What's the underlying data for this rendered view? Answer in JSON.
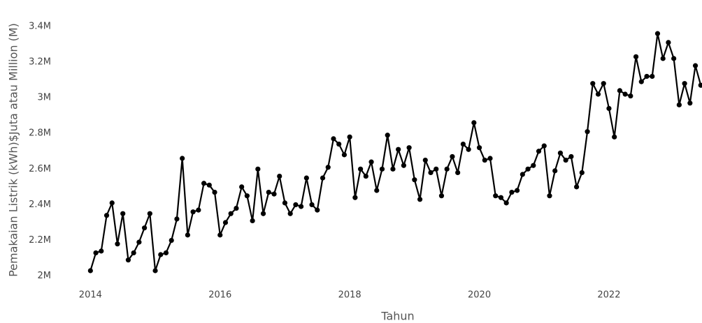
{
  "chart_data": {
    "type": "line",
    "x_label": "Tahun",
    "y_label": "Pemakaian Listrik (kWh)$Juta atau Million (M)",
    "x": [
      "2014-01",
      "2014-02",
      "2014-03",
      "2014-04",
      "2014-05",
      "2014-06",
      "2014-07",
      "2014-08",
      "2014-09",
      "2014-10",
      "2014-11",
      "2014-12",
      "2015-01",
      "2015-02",
      "2015-03",
      "2015-04",
      "2015-05",
      "2015-06",
      "2015-07",
      "2015-08",
      "2015-09",
      "2015-10",
      "2015-11",
      "2015-12",
      "2016-01",
      "2016-02",
      "2016-03",
      "2016-04",
      "2016-05",
      "2016-06",
      "2016-07",
      "2016-08",
      "2016-09",
      "2016-10",
      "2016-11",
      "2016-12",
      "2017-01",
      "2017-02",
      "2017-03",
      "2017-04",
      "2017-05",
      "2017-06",
      "2017-07",
      "2017-08",
      "2017-09",
      "2017-10",
      "2017-11",
      "2017-12",
      "2018-01",
      "2018-02",
      "2018-03",
      "2018-04",
      "2018-05",
      "2018-06",
      "2018-07",
      "2018-08",
      "2018-09",
      "2018-10",
      "2018-11",
      "2018-12",
      "2019-01",
      "2019-02",
      "2019-03",
      "2019-04",
      "2019-05",
      "2019-06",
      "2019-07",
      "2019-08",
      "2019-09",
      "2019-10",
      "2019-11",
      "2019-12",
      "2020-01",
      "2020-02",
      "2020-03",
      "2020-04",
      "2020-05",
      "2020-06",
      "2020-07",
      "2020-08",
      "2020-09",
      "2020-10",
      "2020-11",
      "2020-12",
      "2021-01",
      "2021-02",
      "2021-03",
      "2021-04",
      "2021-05",
      "2021-06",
      "2021-07",
      "2021-08",
      "2021-09",
      "2021-10",
      "2021-11",
      "2021-12",
      "2022-01",
      "2022-02",
      "2022-03",
      "2022-04",
      "2022-05",
      "2022-06",
      "2022-07",
      "2022-08",
      "2022-09",
      "2022-10",
      "2022-11",
      "2022-12",
      "2023-01",
      "2023-02",
      "2023-03",
      "2023-04",
      "2023-05",
      "2023-06"
    ],
    "series": [
      {
        "color": "#000000",
        "values": [
          2.03,
          2.13,
          2.14,
          2.34,
          2.41,
          2.18,
          2.35,
          2.09,
          2.13,
          2.19,
          2.27,
          2.35,
          2.03,
          2.12,
          2.13,
          2.2,
          2.32,
          2.66,
          2.23,
          2.36,
          2.37,
          2.52,
          2.51,
          2.47,
          2.23,
          2.3,
          2.35,
          2.38,
          2.5,
          2.45,
          2.31,
          2.6,
          2.35,
          2.47,
          2.46,
          2.56,
          2.41,
          2.35,
          2.4,
          2.39,
          2.55,
          2.4,
          2.37,
          2.55,
          2.61,
          2.77,
          2.74,
          2.68,
          2.78,
          2.44,
          2.6,
          2.56,
          2.64,
          2.48,
          2.6,
          2.79,
          2.6,
          2.71,
          2.62,
          2.72,
          2.54,
          2.43,
          2.65,
          2.58,
          2.6,
          2.45,
          2.6,
          2.67,
          2.58,
          2.74,
          2.71,
          2.86,
          2.72,
          2.65,
          2.66,
          2.45,
          2.44,
          2.41,
          2.47,
          2.48,
          2.57,
          2.6,
          2.62,
          2.7,
          2.73,
          2.45,
          2.59,
          2.69,
          2.65,
          2.67,
          2.5,
          2.58,
          2.81,
          3.08,
          3.02,
          3.08,
          2.94,
          2.78,
          3.04,
          3.02,
          3.01,
          3.23,
          3.09,
          3.12,
          3.12,
          3.36,
          3.22,
          3.31,
          3.22,
          2.96,
          3.08,
          2.97,
          3.18,
          3.07
        ]
      }
    ],
    "xlim": [
      "2013-07",
      "2023-07"
    ],
    "xticks": [
      2014,
      2016,
      2018,
      2020,
      2022
    ],
    "ylim": [
      1.94,
      3.47
    ],
    "yticks": [
      {
        "value": 2,
        "label": "2M"
      },
      {
        "value": 2.2,
        "label": "2.2M"
      },
      {
        "value": 2.4,
        "label": "2.4M"
      },
      {
        "value": 2.6,
        "label": "2.6M"
      },
      {
        "value": 2.8,
        "label": "2.8M"
      },
      {
        "value": 3,
        "label": "3M"
      },
      {
        "value": 3.2,
        "label": "3.2M"
      },
      {
        "value": 3.4,
        "label": "3.4M"
      }
    ],
    "grid": false
  }
}
